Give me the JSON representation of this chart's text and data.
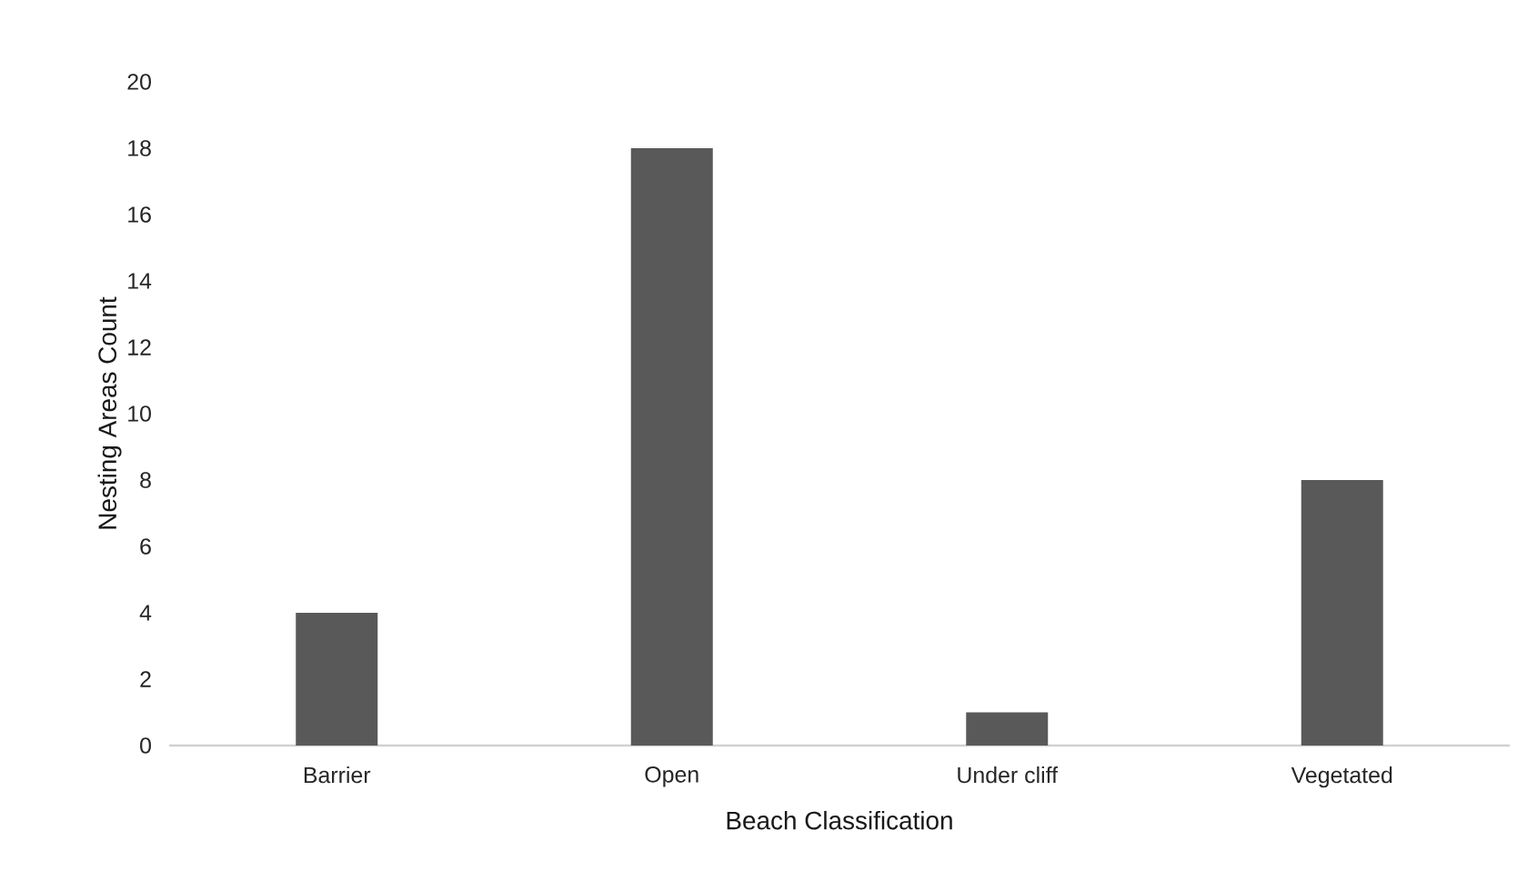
{
  "chart_data": {
    "type": "bar",
    "xlabel": "Beach Classification",
    "ylabel": "Nesting Areas Count",
    "categories": [
      "Barrier",
      "Open",
      "Under cliff",
      "Vegetated"
    ],
    "values": [
      4,
      18,
      1,
      8
    ],
    "color": "#595959",
    "ylim": [
      0,
      20
    ],
    "yticks": [
      0,
      2,
      4,
      6,
      8,
      10,
      12,
      14,
      16,
      18,
      20
    ]
  }
}
